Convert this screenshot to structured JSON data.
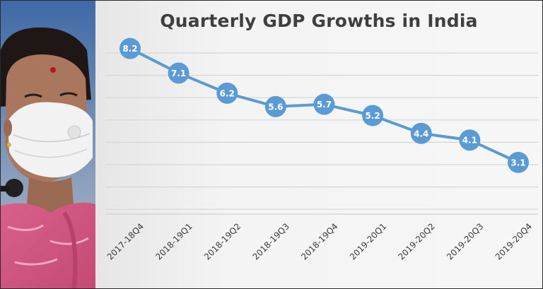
{
  "chart_data": {
    "type": "line",
    "title": "Quarterly GDP Growths in India",
    "categories": [
      "2017-18Q4",
      "2018-19Q1",
      "2018-19Q2",
      "2018-19Q3",
      "2018-19Q4",
      "2019-20Q1",
      "2019-20Q2",
      "2019-20Q3",
      "2019-20Q4"
    ],
    "series": [
      {
        "values": [
          8.2,
          7.1,
          6.2,
          5.6,
          5.7,
          5.2,
          4.4,
          4.1,
          3.1
        ],
        "color": "#5b9bd5"
      }
    ],
    "ylim": [
      0,
      9
    ],
    "grid": true,
    "data_labels": true,
    "legend": "none",
    "colors": {
      "line": "#5b9bd5",
      "marker_label": "#ffffff",
      "gridline": "#d6d6d6",
      "title": "#3f3f3f"
    }
  }
}
